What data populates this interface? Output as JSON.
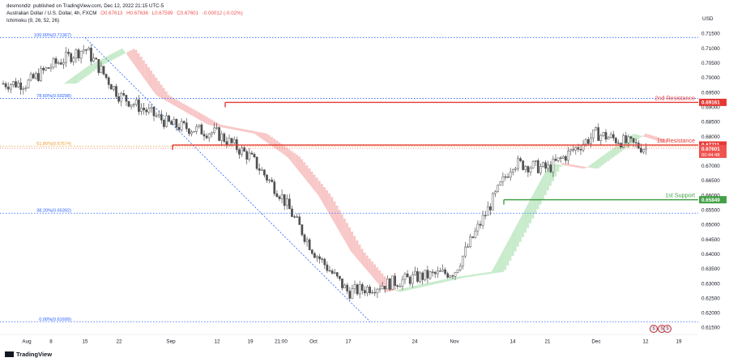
{
  "header": {
    "publisher": "desmondiz",
    "published_text": "published on TradingView.com, Dec 12, 2022 21:15 UTC-5",
    "symbol": "Australian Dollar / U.S. Dollar, 4h, FXCM",
    "open": "O0.67613",
    "high": "H0.67636",
    "low": "L0.67599",
    "close": "C0.67601",
    "change": "-0.00012 (-0.02%)",
    "indicator": "Ichimoku (9, 26, 52, 26)"
  },
  "currency_label": "USD",
  "footer_logo": "TradingView",
  "colors": {
    "up": "#26a69a",
    "down": "#ef5350",
    "candle_body": "#505050",
    "resistance": "#e53935",
    "support": "#43a047",
    "fib": "#2962ff",
    "fib_618": "#f0a030",
    "cloud_bull": "#c8ebcb",
    "cloud_bear": "#f8c7c7"
  },
  "chart_data": {
    "type": "candlestick",
    "ylim": [
      0.6145,
      0.7175
    ],
    "y_ticks": [
      "0.71500",
      "0.71000",
      "0.70500",
      "0.70000",
      "0.69500",
      "0.69000",
      "0.68500",
      "0.68000",
      "0.67500",
      "0.67000",
      "0.66500",
      "0.66000",
      "0.65500",
      "0.65000",
      "0.64500",
      "0.64000",
      "0.63500",
      "0.63000",
      "0.62500",
      "0.62000",
      "0.61500"
    ],
    "x_ticks": [
      "Aug",
      "8",
      "15",
      "22",
      "Sep",
      "12",
      "19",
      "21:00",
      "Oct",
      "17",
      "24",
      "Nov",
      "14",
      "21",
      "Dec",
      "12",
      "19"
    ],
    "fib_levels": [
      {
        "label": "100.00%(0.71367)",
        "value": 0.71367
      },
      {
        "label": "78.60%(0.69298)",
        "value": 0.69298
      },
      {
        "label": "61.80%(0.67674)",
        "value": 0.67674
      },
      {
        "label": "38.20%(0.65392)",
        "value": 0.65392
      },
      {
        "label": "0.00%(0.61699)",
        "value": 0.61699
      }
    ],
    "levels": [
      {
        "name": "2nd Resistance",
        "value": 0.69161,
        "price_label": "0.69161",
        "role": "resistance"
      },
      {
        "name": "1st Resistance",
        "value": 0.67711,
        "price_label": "0.67711",
        "role": "resistance"
      },
      {
        "name": "1st Support",
        "value": 0.65849,
        "price_label": "0.65849",
        "role": "support"
      }
    ],
    "current_price": {
      "value": 0.67601,
      "price_label": "0.67601",
      "countdown": "00:44:48"
    },
    "price_path": [
      {
        "x": "Aug",
        "y": 0.698
      },
      {
        "x": "8",
        "y": 0.704
      },
      {
        "x": "15",
        "y": 0.71
      },
      {
        "x": "22",
        "y": 0.694
      },
      {
        "x": "Sep",
        "y": 0.684
      },
      {
        "x": "12",
        "y": 0.681
      },
      {
        "x": "19",
        "y": 0.673
      },
      {
        "x": "21:00",
        "y": 0.66
      },
      {
        "x": "Oct",
        "y": 0.641
      },
      {
        "x": "17",
        "y": 0.627
      },
      {
        "x": "24",
        "y": 0.632
      },
      {
        "x": "Nov",
        "y": 0.634
      },
      {
        "x": "14",
        "y": 0.671
      },
      {
        "x": "21",
        "y": 0.669
      },
      {
        "x": "Dec",
        "y": 0.681
      },
      {
        "x": "12",
        "y": 0.676
      },
      {
        "x": "19",
        "y": 0.676
      }
    ]
  }
}
